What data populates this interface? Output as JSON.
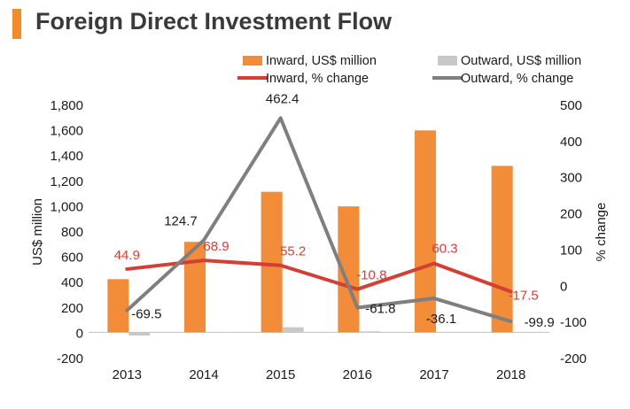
{
  "page": {
    "title": "Foreign Direct Investment Flow"
  },
  "colors": {
    "accent": "#f28c28",
    "inward_bar": "#f28c38",
    "outward_bar": "#c8c8c8",
    "inward_line": "#d33f35",
    "outward_line": "#7f7f7f",
    "inward_label": "#d33f35",
    "text": "#1a1a1a"
  },
  "chart_data": {
    "type": "bar+line",
    "title": "Foreign Direct Investment Flow",
    "categories": [
      "2013",
      "2014",
      "2015",
      "2016",
      "2017",
      "2018"
    ],
    "ylabel": "US$ million",
    "y2label": "% change",
    "ylim": [
      -200,
      1800
    ],
    "y_ticks": [
      "-200",
      "0",
      "200",
      "400",
      "600",
      "800",
      "1,000",
      "1,200",
      "1,400",
      "1,600",
      "1,800"
    ],
    "y2lim": [
      -200,
      500
    ],
    "y2_ticks": [
      "-200",
      "-100",
      "0",
      "100",
      "200",
      "300",
      "400",
      "500"
    ],
    "legend_position": "top-right",
    "series": [
      {
        "name": "Inward, US$ million",
        "kind": "bar",
        "axis": "left",
        "values": [
          420,
          715,
          1110,
          995,
          1595,
          1315
        ]
      },
      {
        "name": "Outward, US$ million",
        "kind": "bar",
        "axis": "left",
        "values": [
          -25,
          3,
          40,
          8,
          0,
          0
        ]
      },
      {
        "name": "Inward, % change",
        "kind": "line",
        "axis": "right",
        "values": [
          44.9,
          68.9,
          55.2,
          -10.8,
          60.3,
          -17.5
        ],
        "labels": [
          "44.9",
          "68.9",
          "55.2",
          "-10.8",
          "60.3",
          "-17.5"
        ]
      },
      {
        "name": "Outward, % change",
        "kind": "line",
        "axis": "right",
        "values": [
          -69.5,
          124.7,
          462.4,
          -61.8,
          -36.1,
          -99.9
        ],
        "labels": [
          "-69.5",
          "124.7",
          "462.4",
          "-61.8",
          "-36.1",
          "-99.9"
        ]
      }
    ]
  }
}
